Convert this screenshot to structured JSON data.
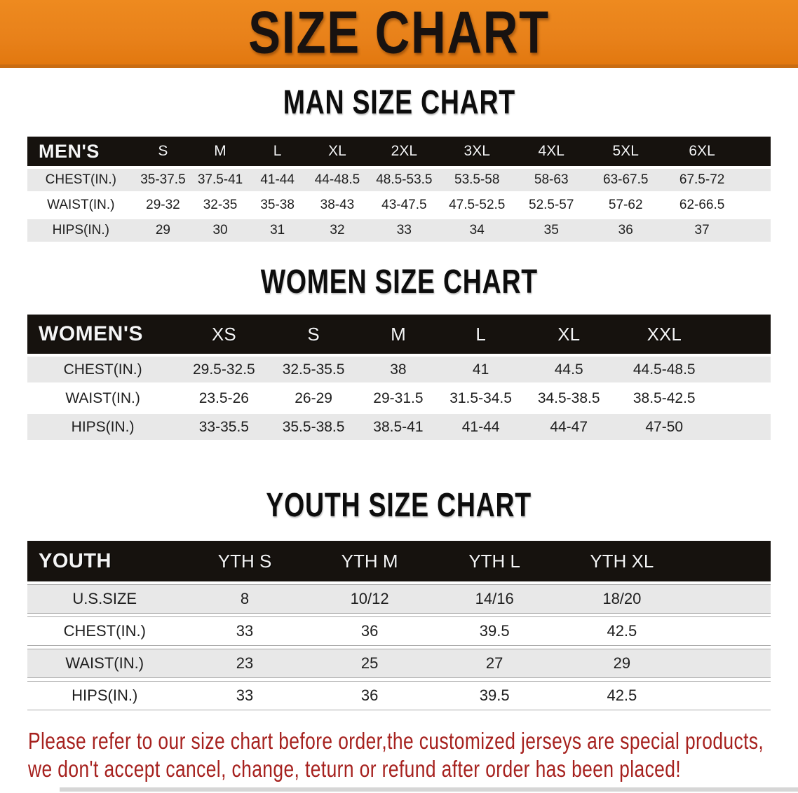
{
  "banner": {
    "title": "SIZE CHART"
  },
  "colors": {
    "banner_orange": "#e8811a",
    "banner_border": "#c96c12",
    "table_header_black": "#16120e",
    "stripe_gray": "#e8e8e8",
    "disclaimer_red": "#a6211e"
  },
  "sections": {
    "men": {
      "heading": "MAN SIZE CHART",
      "table": {
        "header": [
          "MEN'S",
          "S",
          "M",
          "L",
          "XL",
          "2XL",
          "3XL",
          "4XL",
          "5XL",
          "6XL"
        ],
        "rows": [
          [
            "CHEST(IN.)",
            "35-37.5",
            "37.5-41",
            "41-44",
            "44-48.5",
            "48.5-53.5",
            "53.5-58",
            "58-63",
            "63-67.5",
            "67.5-72"
          ],
          [
            "WAIST(IN.)",
            "29-32",
            "32-35",
            "35-38",
            "38-43",
            "43-47.5",
            "47.5-52.5",
            "52.5-57",
            "57-62",
            "62-66.5"
          ],
          [
            "HIPS(IN.)",
            "29",
            "30",
            "31",
            "32",
            "33",
            "34",
            "35",
            "36",
            "37"
          ]
        ]
      }
    },
    "women": {
      "heading": "WOMEN SIZE CHART",
      "table": {
        "header": [
          "WOMEN'S",
          "XS",
          "S",
          "M",
          "L",
          "XL",
          "XXL"
        ],
        "rows": [
          [
            "CHEST(IN.)",
            "29.5-32.5",
            "32.5-35.5",
            "38",
            "41",
            "44.5",
            "44.5-48.5"
          ],
          [
            "WAIST(IN.)",
            "23.5-26",
            "26-29",
            "29-31.5",
            "31.5-34.5",
            "34.5-38.5",
            "38.5-42.5"
          ],
          [
            "HIPS(IN.)",
            "33-35.5",
            "35.5-38.5",
            "38.5-41",
            "41-44",
            "44-47",
            "47-50"
          ]
        ]
      }
    },
    "youth": {
      "heading": "YOUTH SIZE CHART",
      "table": {
        "header": [
          "YOUTH",
          "YTH S",
          "YTH M",
          "YTH L",
          "YTH XL"
        ],
        "rows": [
          [
            "U.S.SIZE",
            "8",
            "10/12",
            "14/16",
            "18/20"
          ],
          [
            "CHEST(IN.)",
            "33",
            "36",
            "39.5",
            "42.5"
          ],
          [
            "WAIST(IN.)",
            "23",
            "25",
            "27",
            "29"
          ],
          [
            "HIPS(IN.)",
            "33",
            "36",
            "39.5",
            "42.5"
          ]
        ]
      }
    }
  },
  "disclaimer": {
    "line1": "Please refer to our size chart before order,the customized jerseys are special products,",
    "line2": "we don't accept cancel, change, teturn or refund after order has been placed!"
  }
}
